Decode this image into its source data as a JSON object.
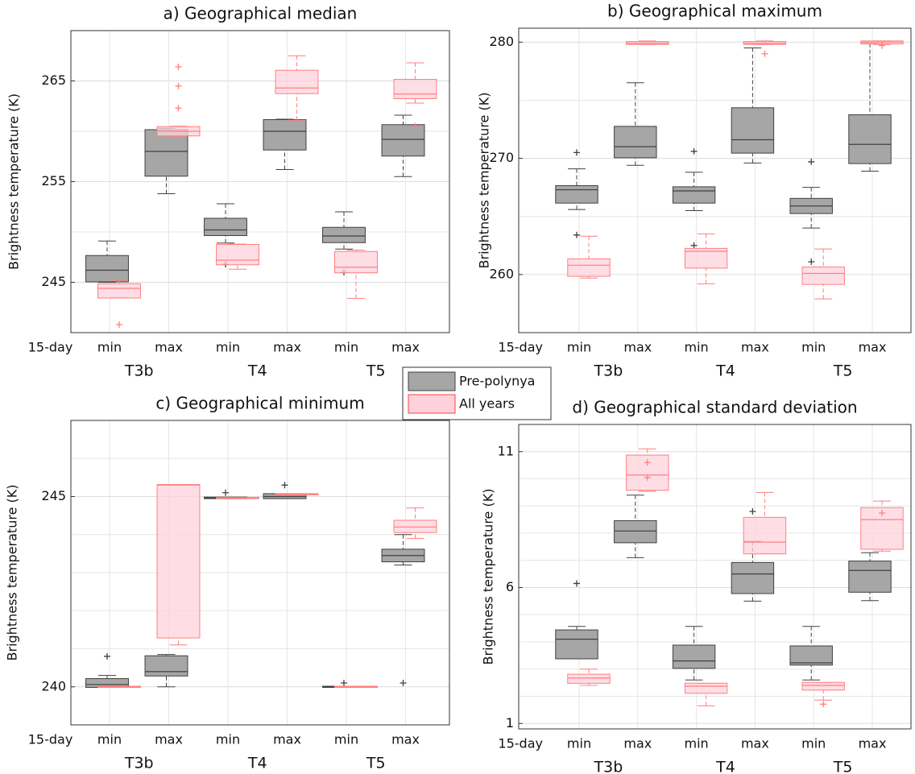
{
  "chart_data": [
    {
      "type": "box",
      "title": "a) Geographical median",
      "ylabel": "Brightness temperature (K)",
      "x_start_label": "15-day",
      "categories": [
        "min",
        "max",
        "min",
        "max",
        "min",
        "max"
      ],
      "groups": [
        "T3b",
        "T4",
        "T5"
      ],
      "ylim": [
        240,
        270
      ],
      "yticks": [
        245,
        255,
        265
      ],
      "minor_yticks": [
        250,
        260
      ],
      "grid": true,
      "series": [
        {
          "name": "Pre-polynya",
          "color": "#a6a6a6",
          "edge": "#404040",
          "boxes": [
            {
              "low": 245.0,
              "q1": 245.1,
              "median": 246.2,
              "q3": 247.6,
              "high": 249.1
            },
            {
              "low": 253.8,
              "q1": 255.6,
              "median": 258.0,
              "q3": 260.1,
              "high": 260.3
            },
            {
              "low": 248.9,
              "q1": 249.7,
              "median": 250.2,
              "q3": 251.3,
              "high": 252.8,
              "outliers": [
                246.8
              ]
            },
            {
              "low": 256.2,
              "q1": 258.2,
              "median": 260.0,
              "q3": 261.1,
              "high": 261.2
            },
            {
              "low": 248.3,
              "q1": 249.0,
              "median": 249.6,
              "q3": 250.4,
              "high": 252.0,
              "outliers": [
                246.0
              ]
            },
            {
              "low": 255.5,
              "q1": 257.6,
              "median": 259.2,
              "q3": 260.6,
              "high": 261.6
            }
          ]
        },
        {
          "name": "All years",
          "color": "#ffd1dc",
          "edge": "#ff7f7f",
          "boxes": [
            {
              "low": 243.5,
              "q1": 243.5,
              "median": 244.4,
              "q3": 244.8,
              "high": 245.2,
              "outliers": [
                240.8
              ]
            },
            {
              "low": 259.5,
              "q1": 259.6,
              "median": 260.0,
              "q3": 260.4,
              "high": 260.5,
              "outliers": [
                262.3,
                264.5,
                266.4
              ]
            },
            {
              "low": 246.3,
              "q1": 246.8,
              "median": 247.2,
              "q3": 248.7,
              "high": 248.8
            },
            {
              "low": 261.1,
              "q1": 263.8,
              "median": 264.3,
              "q3": 266.0,
              "high": 267.5
            },
            {
              "low": 243.4,
              "q1": 246.0,
              "median": 246.5,
              "q3": 248.0,
              "high": 248.2
            },
            {
              "low": 262.8,
              "q1": 263.3,
              "median": 263.7,
              "q3": 265.1,
              "high": 266.8,
              "outliers": [
                260.5
              ]
            }
          ]
        }
      ]
    },
    {
      "type": "box",
      "title": "b) Geographical maximum",
      "ylabel": "Brightness temperature (K)",
      "x_start_label": "15-day",
      "categories": [
        "min",
        "max",
        "min",
        "max",
        "min",
        "max"
      ],
      "groups": [
        "T3b",
        "T4",
        "T5"
      ],
      "ylim": [
        255,
        281.2
      ],
      "yticks": [
        260,
        270,
        280
      ],
      "minor_yticks": [
        265,
        275
      ],
      "grid": true,
      "series": [
        {
          "color": "#a6a6a6",
          "edge": "#404040",
          "boxes": [
            {
              "low": 265.6,
              "q1": 266.2,
              "median": 267.3,
              "q3": 267.6,
              "high": 269.1,
              "outliers": [
                270.5,
                263.4
              ]
            },
            {
              "low": 269.4,
              "q1": 270.1,
              "median": 271.0,
              "q3": 272.7,
              "high": 276.5
            },
            {
              "low": 265.5,
              "q1": 266.2,
              "median": 267.2,
              "q3": 267.5,
              "high": 268.8,
              "outliers": [
                270.6,
                262.5
              ]
            },
            {
              "low": 269.6,
              "q1": 270.5,
              "median": 271.6,
              "q3": 274.3,
              "high": 279.5
            },
            {
              "low": 264.0,
              "q1": 265.3,
              "median": 265.9,
              "q3": 266.5,
              "high": 267.5,
              "outliers": [
                269.7,
                261.1
              ]
            },
            {
              "low": 268.9,
              "q1": 269.6,
              "median": 271.2,
              "q3": 273.7,
              "high": 279.9
            }
          ]
        },
        {
          "color": "#ffd1dc",
          "edge": "#ff7f7f",
          "boxes": [
            {
              "low": 259.7,
              "q1": 259.9,
              "median": 260.8,
              "q3": 261.3,
              "high": 263.3
            },
            {
              "low": 279.8,
              "q1": 279.85,
              "median": 279.9,
              "q3": 280.0,
              "high": 280.1
            },
            {
              "low": 259.2,
              "q1": 260.6,
              "median": 262.0,
              "q3": 262.2,
              "high": 263.5
            },
            {
              "low": 279.8,
              "q1": 279.85,
              "median": 279.9,
              "q3": 280.0,
              "high": 280.1,
              "outliers": [
                279.0
              ]
            },
            {
              "low": 257.9,
              "q1": 259.2,
              "median": 260.1,
              "q3": 260.6,
              "high": 262.2
            },
            {
              "low": 279.8,
              "q1": 279.9,
              "median": 280.0,
              "q3": 280.05,
              "high": 280.1,
              "outliers": [
                279.7
              ]
            }
          ]
        }
      ]
    },
    {
      "type": "box",
      "title": "c) Geographical minimum",
      "ylabel": "Brightness temperature (K)",
      "x_start_label": "15-day",
      "categories": [
        "min",
        "max",
        "min",
        "max",
        "min",
        "max"
      ],
      "groups": [
        "T3b",
        "T4",
        "T5"
      ],
      "ylim": [
        239,
        247
      ],
      "yticks": [
        240,
        245
      ],
      "minor_yticks": [
        241,
        242,
        243,
        244,
        246
      ],
      "grid": true,
      "series": [
        {
          "color": "#a6a6a6",
          "edge": "#404040",
          "boxes": [
            {
              "low": 240.0,
              "q1": 240.0,
              "median": 240.06,
              "q3": 240.2,
              "high": 240.3,
              "outliers": [
                240.8
              ]
            },
            {
              "low": 240.0,
              "q1": 240.3,
              "median": 240.4,
              "q3": 240.8,
              "high": 240.85
            },
            {
              "low": 244.96,
              "q1": 244.96,
              "median": 244.96,
              "q3": 244.97,
              "high": 244.97,
              "outliers": [
                245.1
              ]
            },
            {
              "low": 244.96,
              "q1": 244.96,
              "median": 245.0,
              "q3": 245.06,
              "high": 245.06,
              "outliers": [
                245.3
              ]
            },
            {
              "low": 240.0,
              "q1": 240.0,
              "median": 240.0,
              "q3": 240.0,
              "high": 240.0,
              "outliers": [
                240.1
              ]
            },
            {
              "low": 243.2,
              "q1": 243.3,
              "median": 243.45,
              "q3": 243.6,
              "high": 244.0,
              "outliers": [
                240.1
              ]
            }
          ]
        },
        {
          "color": "#ffd1dc",
          "edge": "#ff7f7f",
          "boxes": [
            {
              "low": 240.0,
              "q1": 240.0,
              "median": 240.0,
              "q3": 240.0,
              "high": 240.0
            },
            {
              "low": 241.1,
              "q1": 241.3,
              "median": 245.3,
              "q3": 245.3,
              "high": 245.3
            },
            {
              "low": 244.96,
              "q1": 244.96,
              "median": 244.96,
              "q3": 244.96,
              "high": 244.96
            },
            {
              "low": 245.06,
              "q1": 245.06,
              "median": 245.06,
              "q3": 245.06,
              "high": 245.06
            },
            {
              "low": 240.0,
              "q1": 240.0,
              "median": 240.0,
              "q3": 240.0,
              "high": 240.0
            },
            {
              "low": 243.9,
              "q1": 244.07,
              "median": 244.2,
              "q3": 244.36,
              "high": 244.7
            }
          ]
        }
      ]
    },
    {
      "type": "box",
      "title": "d) Geographical standard deviation",
      "ylabel": "Brightness temperature (K)",
      "x_start_label": "15-day",
      "categories": [
        "min",
        "max",
        "min",
        "max",
        "min",
        "max"
      ],
      "groups": [
        "T3b",
        "T4",
        "T5"
      ],
      "ylim": [
        0.8,
        12
      ],
      "yticks": [
        1,
        6,
        11
      ],
      "minor_yticks": [
        2,
        3,
        4,
        5,
        7,
        8,
        9,
        10
      ],
      "grid": true,
      "series": [
        {
          "color": "#a6a6a6",
          "edge": "#404040",
          "boxes": [
            {
              "low": 3.4,
              "q1": 3.4,
              "median": 4.1,
              "q3": 4.42,
              "high": 4.57,
              "outliers": [
                6.15
              ]
            },
            {
              "low": 7.1,
              "q1": 7.67,
              "median": 8.08,
              "q3": 8.44,
              "high": 9.4
            },
            {
              "low": 2.6,
              "q1": 3.05,
              "median": 3.3,
              "q3": 3.86,
              "high": 4.57
            },
            {
              "low": 5.5,
              "q1": 5.8,
              "median": 6.5,
              "q3": 6.9,
              "high": 7.7,
              "outliers": [
                8.8
              ]
            },
            {
              "low": 2.6,
              "q1": 3.17,
              "median": 3.23,
              "q3": 3.83,
              "high": 4.57
            },
            {
              "low": 5.52,
              "q1": 5.85,
              "median": 6.63,
              "q3": 6.95,
              "high": 7.28
            }
          ]
        },
        {
          "color": "#ffd1dc",
          "edge": "#ff7f7f",
          "boxes": [
            {
              "low": 2.4,
              "q1": 2.5,
              "median": 2.67,
              "q3": 2.79,
              "high": 3.0
            },
            {
              "low": 9.54,
              "q1": 9.6,
              "median": 10.14,
              "q3": 10.85,
              "high": 11.1,
              "outliers": [
                10.6,
                10.05
              ]
            },
            {
              "low": 1.65,
              "q1": 2.13,
              "median": 2.37,
              "q3": 2.46,
              "high": 2.47
            },
            {
              "low": 7.25,
              "q1": 7.26,
              "median": 7.67,
              "q3": 8.56,
              "high": 9.5
            },
            {
              "low": 1.86,
              "q1": 2.25,
              "median": 2.4,
              "q3": 2.49,
              "high": 2.5,
              "outliers": [
                1.71
              ]
            },
            {
              "low": 7.34,
              "q1": 7.43,
              "median": 8.5,
              "q3": 8.92,
              "high": 9.18,
              "outliers": [
                8.74
              ]
            }
          ]
        }
      ]
    }
  ]
}
